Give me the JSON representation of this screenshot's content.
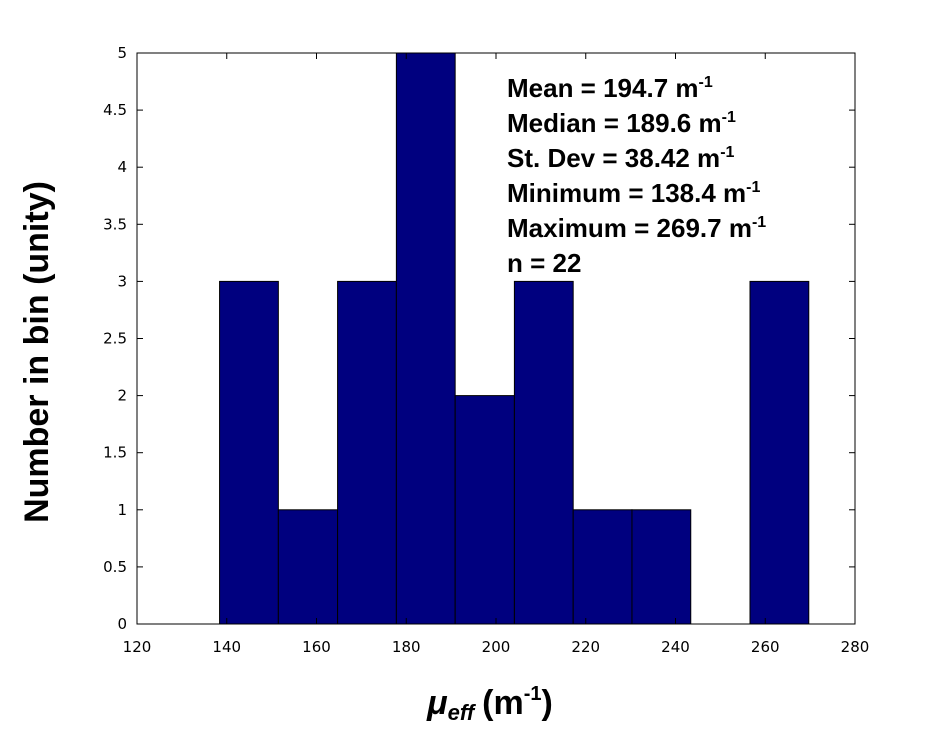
{
  "chart_data": {
    "type": "bar",
    "subtype": "histogram",
    "bins": [
      {
        "x0": 138.4,
        "x1": 151.5,
        "count": 3
      },
      {
        "x0": 151.5,
        "x1": 164.7,
        "count": 1
      },
      {
        "x0": 164.7,
        "x1": 177.8,
        "count": 3
      },
      {
        "x0": 177.8,
        "x1": 190.9,
        "count": 5
      },
      {
        "x0": 190.9,
        "x1": 204.1,
        "count": 2
      },
      {
        "x0": 204.1,
        "x1": 217.2,
        "count": 3
      },
      {
        "x0": 217.2,
        "x1": 230.3,
        "count": 1
      },
      {
        "x0": 230.3,
        "x1": 243.4,
        "count": 1
      },
      {
        "x0": 243.4,
        "x1": 256.6,
        "count": 0
      },
      {
        "x0": 256.6,
        "x1": 269.7,
        "count": 3
      }
    ],
    "xlim": [
      120,
      280
    ],
    "ylim": [
      0,
      5
    ],
    "xticks": [
      "120",
      "140",
      "160",
      "180",
      "200",
      "220",
      "240",
      "260",
      "280"
    ],
    "yticks": [
      "0",
      "0.5",
      "1",
      "1.5",
      "2",
      "2.5",
      "3",
      "3.5",
      "4",
      "4.5",
      "5"
    ],
    "ylabel": "Number in bin (unity)",
    "xlabel": {
      "symbol": "μ",
      "subscript": "eff",
      "unit": "(m",
      "unit_sup": "-1",
      "unit_close": ")"
    },
    "bar_color": "#00007f",
    "grid": false,
    "annotations": [
      {
        "text": "Mean = 194.7 m",
        "sup": "-1"
      },
      {
        "text": "Median = 189.6 m",
        "sup": "-1"
      },
      {
        "text": "St. Dev = 38.42 m",
        "sup": "-1"
      },
      {
        "text": "Minimum = 138.4 m",
        "sup": "-1"
      },
      {
        "text": "Maximum = 269.7 m",
        "sup": "-1"
      },
      {
        "text": "n = 22",
        "sup": ""
      }
    ]
  }
}
